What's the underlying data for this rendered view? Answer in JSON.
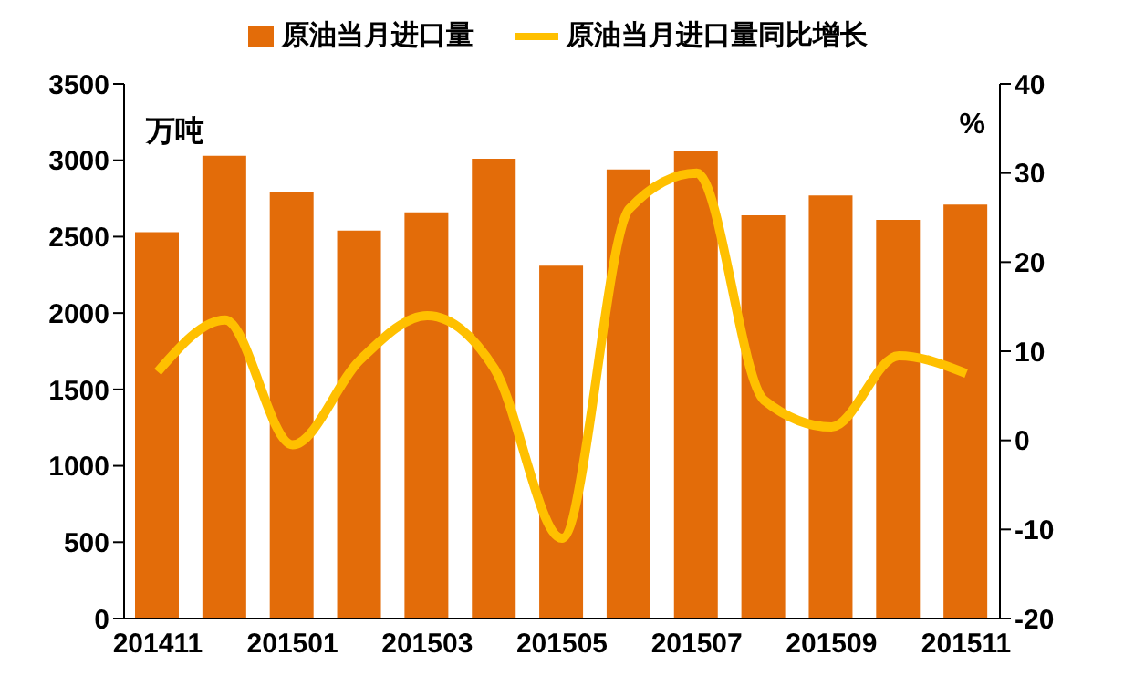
{
  "chart_data": {
    "type": "bar",
    "ylabel": "万吨",
    "y2label": "%",
    "categories": [
      "201411",
      null,
      "201501",
      null,
      "201503",
      null,
      "201505",
      null,
      "201507",
      null,
      "201509",
      null,
      "201511"
    ],
    "series": [
      {
        "name": "原油当月进口量",
        "color": "#e36c09",
        "values": [
          2530,
          3030,
          2790,
          2540,
          2660,
          3010,
          2310,
          2940,
          3060,
          2640,
          2770,
          2610,
          2710
        ]
      },
      {
        "name": "原油当月进口量同比增长",
        "type": "line",
        "axis": "y2",
        "color": "#ffc000",
        "values": [
          7.7,
          13.5,
          -0.5,
          9,
          14,
          8,
          -11,
          26,
          30,
          4.5,
          1.5,
          9.5,
          7.5
        ]
      }
    ],
    "ylim": [
      0,
      3500
    ],
    "yticks": [
      0,
      500,
      1000,
      1500,
      2000,
      2500,
      3000,
      3500
    ],
    "y2lim": [
      -20,
      40
    ],
    "y2ticks": [
      -20,
      -10,
      0,
      10,
      20,
      30,
      40
    ],
    "legend": "top",
    "marker": "none"
  }
}
